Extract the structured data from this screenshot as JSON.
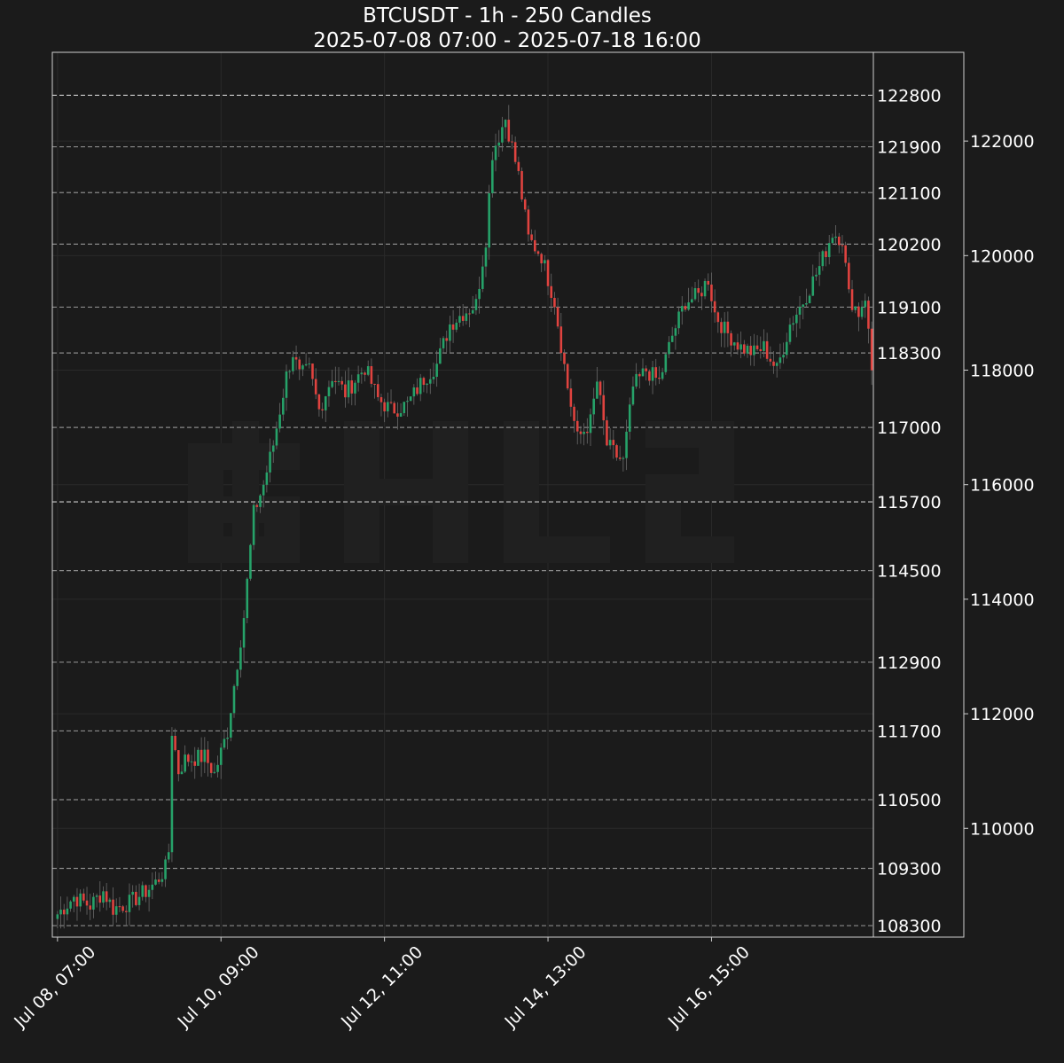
{
  "chart_data": {
    "type": "candlestick",
    "title": "BTCUSDT - 1h - 250 Candles",
    "subtitle": "2025-07-08 07:00 - 2025-07-18 16:00",
    "interval": "1h",
    "candle_count": 250,
    "grid": true,
    "watermark": "logo",
    "colors": {
      "background": "#1b1b1b",
      "up": "#26a269",
      "down": "#e0433f",
      "axis": "#cccccc",
      "text": "#ffffff",
      "level_line": "#8a8a8a",
      "level_line_strong": "#cfcfcf",
      "grid": "#2a2a2a"
    },
    "ylim": [
      108100,
      123550
    ],
    "x_ticks": [
      "Jul 08, 07:00",
      "Jul 10, 09:00",
      "Jul 12, 11:00",
      "Jul 14, 13:00",
      "Jul 16, 15:00"
    ],
    "x_tick_index": [
      0,
      50,
      100,
      150,
      200
    ],
    "y_ticks_outer": [
      110000,
      112000,
      114000,
      116000,
      118000,
      120000,
      122000
    ],
    "levels": [
      {
        "price": 122800,
        "label": "122800",
        "strong": true
      },
      {
        "price": 121900,
        "label": "121900",
        "strong": false
      },
      {
        "price": 121100,
        "label": "121100",
        "strong": false
      },
      {
        "price": 120200,
        "label": "120200",
        "strong": false
      },
      {
        "price": 119100,
        "label": "119100",
        "strong": false
      },
      {
        "price": 118300,
        "label": "118300",
        "strong": false
      },
      {
        "price": 117000,
        "label": "117000",
        "strong": false
      },
      {
        "price": 115700,
        "label": "115700",
        "strong": true
      },
      {
        "price": 114500,
        "label": "114500",
        "strong": false
      },
      {
        "price": 112900,
        "label": "112900",
        "strong": false
      },
      {
        "price": 111700,
        "label": "111700",
        "strong": false
      },
      {
        "price": 110500,
        "label": "110500",
        "strong": false
      },
      {
        "price": 109300,
        "label": "109300",
        "strong": false
      },
      {
        "price": 108300,
        "label": "108300",
        "strong": false
      }
    ],
    "close_anchors": [
      [
        0,
        108500
      ],
      [
        5,
        108800
      ],
      [
        10,
        108650
      ],
      [
        14,
        108900
      ],
      [
        17,
        108600
      ],
      [
        22,
        108700
      ],
      [
        27,
        108900
      ],
      [
        30,
        109050
      ],
      [
        33,
        109300
      ],
      [
        34,
        109600
      ],
      [
        35,
        111700
      ],
      [
        37,
        111000
      ],
      [
        39,
        111200
      ],
      [
        45,
        111250
      ],
      [
        48,
        110950
      ],
      [
        52,
        111700
      ],
      [
        57,
        113700
      ],
      [
        60,
        115500
      ],
      [
        63,
        116000
      ],
      [
        66,
        116700
      ],
      [
        70,
        117900
      ],
      [
        72,
        118300
      ],
      [
        74,
        117900
      ],
      [
        77,
        118000
      ],
      [
        80,
        117300
      ],
      [
        84,
        117900
      ],
      [
        88,
        117600
      ],
      [
        94,
        118050
      ],
      [
        98,
        117500
      ],
      [
        102,
        117300
      ],
      [
        107,
        117400
      ],
      [
        112,
        117850
      ],
      [
        116,
        118100
      ],
      [
        120,
        118800
      ],
      [
        124,
        119000
      ],
      [
        128,
        119150
      ],
      [
        131,
        120300
      ],
      [
        133,
        121800
      ],
      [
        137,
        122400
      ],
      [
        141,
        121400
      ],
      [
        144,
        120300
      ],
      [
        148,
        120000
      ],
      [
        152,
        119200
      ],
      [
        156,
        117700
      ],
      [
        159,
        116800
      ],
      [
        163,
        117100
      ],
      [
        165,
        117800
      ],
      [
        168,
        116700
      ],
      [
        171,
        116500
      ],
      [
        173,
        116400
      ],
      [
        176,
        117700
      ],
      [
        180,
        118000
      ],
      [
        184,
        117800
      ],
      [
        188,
        118600
      ],
      [
        192,
        119200
      ],
      [
        196,
        119300
      ],
      [
        199,
        119600
      ],
      [
        201,
        119000
      ],
      [
        204,
        118700
      ],
      [
        209,
        118400
      ],
      [
        213,
        118300
      ],
      [
        216,
        118400
      ],
      [
        220,
        118000
      ],
      [
        224,
        118800
      ],
      [
        228,
        119200
      ],
      [
        233,
        119800
      ],
      [
        237,
        120400
      ],
      [
        240,
        120300
      ],
      [
        242,
        119300
      ],
      [
        245,
        119000
      ],
      [
        247,
        119300
      ],
      [
        249,
        118000
      ]
    ]
  }
}
